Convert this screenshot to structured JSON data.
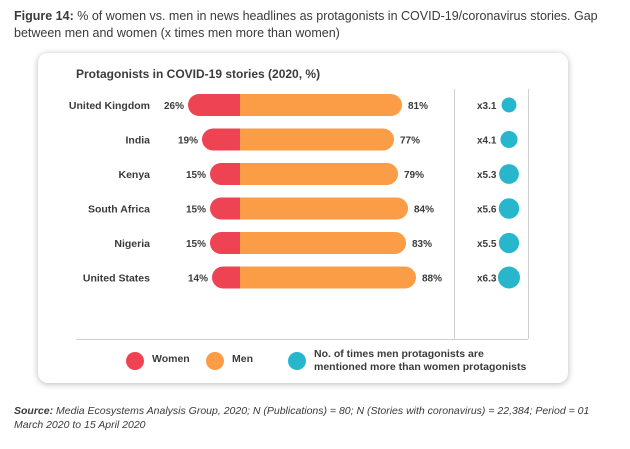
{
  "caption": {
    "label": "Figure 14:",
    "text": "% of women vs. men in news headlines as protagonists in COVID-19/coronavirus stories. Gap between men and women (x times men more than women)"
  },
  "source": {
    "label": "Source:",
    "text": "Media Ecosystems Analysis Group, 2020; N (Publications) = 80; N (Stories with coronavirus) = 22,384; Period = 01 March 2020 to 15 April 2020"
  },
  "legend": {
    "women": "Women",
    "men": "Men",
    "ratio": "No. of times men protagonists are mentioned more than women protagonists"
  },
  "colors": {
    "women": "#ee4353",
    "men": "#fb9c46",
    "ratio": "#28b6cc"
  },
  "chart_data": {
    "type": "bar",
    "title": "Protagonists in COVID-19 stories (2020, %)",
    "categories": [
      "United Kingdom",
      "India",
      "Kenya",
      "South Africa",
      "Nigeria",
      "United States"
    ],
    "series": [
      {
        "name": "Women",
        "values": [
          26,
          19,
          15,
          15,
          15,
          14
        ],
        "labels": [
          "26%",
          "19%",
          "15%",
          "15%",
          "15%",
          "14%"
        ]
      },
      {
        "name": "Men",
        "values": [
          81,
          77,
          79,
          84,
          83,
          88
        ],
        "labels": [
          "81%",
          "77%",
          "79%",
          "84%",
          "83%",
          "88%"
        ]
      }
    ],
    "ratio": {
      "values": [
        3.1,
        4.1,
        5.3,
        5.6,
        5.5,
        6.3
      ],
      "labels": [
        "x3.1",
        "x4.1",
        "x5.3",
        "x5.6",
        "x5.5",
        "x6.3"
      ]
    },
    "legend_position": "bottom",
    "grid": false
  }
}
